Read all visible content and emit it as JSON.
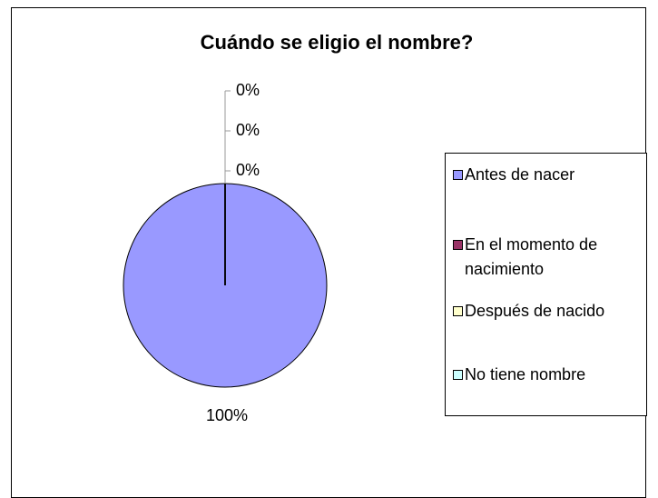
{
  "chart_data": {
    "type": "pie",
    "title": "Cuándo se eligio el nombre?",
    "categories": [
      "Antes de nacer",
      "En el momento de nacimiento",
      "Después de nacido",
      "No tiene nombre"
    ],
    "values": [
      100,
      0,
      0,
      0
    ],
    "value_labels": [
      "100%",
      "0%",
      "0%",
      "0%"
    ],
    "colors": [
      "#9999ff",
      "#993366",
      "#ffffcc",
      "#ccffff"
    ],
    "legend": "right"
  }
}
